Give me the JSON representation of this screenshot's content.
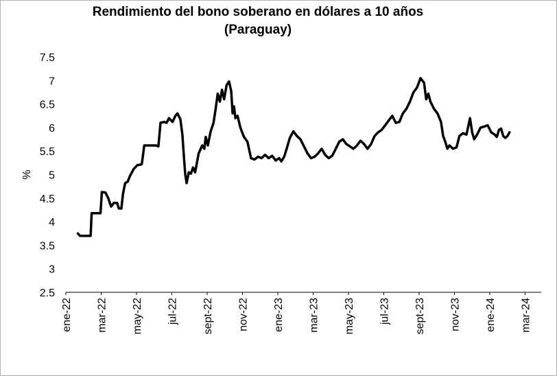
{
  "chart_data": {
    "type": "line",
    "title": "Rendimiento del bono soberano en dólares a 10 años",
    "subtitle": "(Paraguay)",
    "ylabel": "%",
    "xlabel": "",
    "ylim": [
      2.5,
      7.5
    ],
    "yticks": [
      "2.5",
      "3",
      "3.5",
      "4",
      "4.5",
      "5",
      "5.5",
      "6",
      "6.5",
      "7",
      "7.5"
    ],
    "xticks": [
      "ene-22",
      "mar-22",
      "may-22",
      "jul-22",
      "sept-22",
      "nov-22",
      "ene-23",
      "mar-23",
      "may-23",
      "jul-23",
      "sept-23",
      "nov-23",
      "ene-24",
      "mar-24"
    ],
    "grid": false,
    "legend": "none",
    "line_color": "#000000",
    "series": [
      {
        "values": [
          [
            0.34,
            3.75
          ],
          [
            0.4,
            3.7
          ],
          [
            0.7,
            3.7
          ],
          [
            0.73,
            4.18
          ],
          [
            0.98,
            4.18
          ],
          [
            1.02,
            4.63
          ],
          [
            1.12,
            4.62
          ],
          [
            1.2,
            4.5
          ],
          [
            1.28,
            4.32
          ],
          [
            1.36,
            4.4
          ],
          [
            1.45,
            4.4
          ],
          [
            1.5,
            4.28
          ],
          [
            1.57,
            4.28
          ],
          [
            1.62,
            4.6
          ],
          [
            1.68,
            4.82
          ],
          [
            1.75,
            4.85
          ],
          [
            1.82,
            4.98
          ],
          [
            1.92,
            5.12
          ],
          [
            2.02,
            5.2
          ],
          [
            2.15,
            5.22
          ],
          [
            2.22,
            5.62
          ],
          [
            2.45,
            5.62
          ],
          [
            2.55,
            5.62
          ],
          [
            2.62,
            5.6
          ],
          [
            2.68,
            6.1
          ],
          [
            2.78,
            6.12
          ],
          [
            2.85,
            6.1
          ],
          [
            2.92,
            6.2
          ],
          [
            3.02,
            6.12
          ],
          [
            3.1,
            6.25
          ],
          [
            3.16,
            6.3
          ],
          [
            3.24,
            6.18
          ],
          [
            3.3,
            5.85
          ],
          [
            3.34,
            5.4
          ],
          [
            3.38,
            5.0
          ],
          [
            3.42,
            4.82
          ],
          [
            3.48,
            5.05
          ],
          [
            3.54,
            5.02
          ],
          [
            3.6,
            5.15
          ],
          [
            3.66,
            5.05
          ],
          [
            3.76,
            5.45
          ],
          [
            3.86,
            5.62
          ],
          [
            3.92,
            5.55
          ],
          [
            3.96,
            5.8
          ],
          [
            4.02,
            5.62
          ],
          [
            4.1,
            5.92
          ],
          [
            4.18,
            6.1
          ],
          [
            4.24,
            6.4
          ],
          [
            4.3,
            6.72
          ],
          [
            4.36,
            6.55
          ],
          [
            4.42,
            6.8
          ],
          [
            4.48,
            6.6
          ],
          [
            4.55,
            6.9
          ],
          [
            4.62,
            6.98
          ],
          [
            4.68,
            6.78
          ],
          [
            4.72,
            6.3
          ],
          [
            4.76,
            6.45
          ],
          [
            4.8,
            6.2
          ],
          [
            4.86,
            6.25
          ],
          [
            4.94,
            6.0
          ],
          [
            5.04,
            5.8
          ],
          [
            5.14,
            5.7
          ],
          [
            5.24,
            5.35
          ],
          [
            5.34,
            5.32
          ],
          [
            5.44,
            5.38
          ],
          [
            5.54,
            5.35
          ],
          [
            5.64,
            5.42
          ],
          [
            5.74,
            5.35
          ],
          [
            5.84,
            5.4
          ],
          [
            5.94,
            5.3
          ],
          [
            6.04,
            5.35
          ],
          [
            6.1,
            5.28
          ],
          [
            6.18,
            5.38
          ],
          [
            6.25,
            5.55
          ],
          [
            6.34,
            5.78
          ],
          [
            6.44,
            5.92
          ],
          [
            6.54,
            5.82
          ],
          [
            6.64,
            5.75
          ],
          [
            6.74,
            5.6
          ],
          [
            6.84,
            5.45
          ],
          [
            6.94,
            5.35
          ],
          [
            7.04,
            5.38
          ],
          [
            7.14,
            5.45
          ],
          [
            7.24,
            5.55
          ],
          [
            7.34,
            5.42
          ],
          [
            7.44,
            5.35
          ],
          [
            7.54,
            5.4
          ],
          [
            7.64,
            5.55
          ],
          [
            7.74,
            5.7
          ],
          [
            7.84,
            5.75
          ],
          [
            7.94,
            5.65
          ],
          [
            8.04,
            5.6
          ],
          [
            8.14,
            5.55
          ],
          [
            8.24,
            5.62
          ],
          [
            8.34,
            5.72
          ],
          [
            8.44,
            5.65
          ],
          [
            8.54,
            5.55
          ],
          [
            8.64,
            5.65
          ],
          [
            8.74,
            5.82
          ],
          [
            8.84,
            5.9
          ],
          [
            8.94,
            5.95
          ],
          [
            9.04,
            6.05
          ],
          [
            9.14,
            6.15
          ],
          [
            9.24,
            6.25
          ],
          [
            9.34,
            6.1
          ],
          [
            9.44,
            6.12
          ],
          [
            9.54,
            6.3
          ],
          [
            9.64,
            6.4
          ],
          [
            9.74,
            6.55
          ],
          [
            9.84,
            6.75
          ],
          [
            9.94,
            6.85
          ],
          [
            10.04,
            7.05
          ],
          [
            10.14,
            6.95
          ],
          [
            10.2,
            6.6
          ],
          [
            10.26,
            6.72
          ],
          [
            10.32,
            6.55
          ],
          [
            10.42,
            6.4
          ],
          [
            10.52,
            6.3
          ],
          [
            10.62,
            6.12
          ],
          [
            10.68,
            5.82
          ],
          [
            10.74,
            5.7
          ],
          [
            10.8,
            5.55
          ],
          [
            10.86,
            5.62
          ],
          [
            10.96,
            5.55
          ],
          [
            11.06,
            5.58
          ],
          [
            11.14,
            5.82
          ],
          [
            11.24,
            5.88
          ],
          [
            11.34,
            5.85
          ],
          [
            11.44,
            6.2
          ],
          [
            11.5,
            5.9
          ],
          [
            11.56,
            5.75
          ],
          [
            11.64,
            5.85
          ],
          [
            11.74,
            6.0
          ],
          [
            11.84,
            6.02
          ],
          [
            11.94,
            6.05
          ],
          [
            12.04,
            5.9
          ],
          [
            12.14,
            5.85
          ],
          [
            12.2,
            5.8
          ],
          [
            12.26,
            5.95
          ],
          [
            12.32,
            5.98
          ],
          [
            12.38,
            5.82
          ],
          [
            12.44,
            5.78
          ],
          [
            12.5,
            5.82
          ],
          [
            12.56,
            5.9
          ]
        ]
      }
    ]
  }
}
